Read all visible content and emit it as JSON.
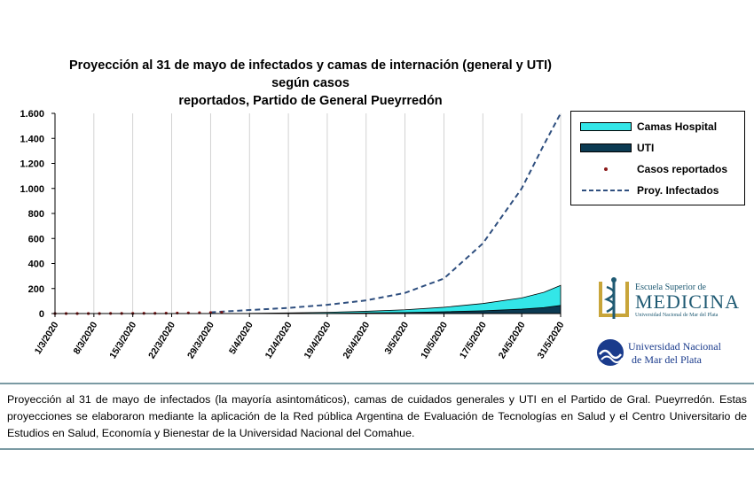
{
  "chart_data": {
    "type": "area",
    "title_line1": "Proyección al 31 de mayo de infectados y camas de internación (general y UTI) según casos",
    "title_line2": "reportados, Partido de General Pueyrredón",
    "xlabel": "",
    "ylabel": "",
    "ylim": [
      0,
      1600
    ],
    "y_ticks": [
      0,
      200,
      400,
      600,
      800,
      1000,
      1200,
      1400,
      1600
    ],
    "y_tick_labels": [
      "0",
      "200",
      "400",
      "600",
      "800",
      "1.000",
      "1.200",
      "1.400",
      "1.600"
    ],
    "x_tick_labels": [
      "1/3/2020",
      "8/3/2020",
      "15/3/2020",
      "22/3/2020",
      "29/3/2020",
      "5/4/2020",
      "12/4/2020",
      "19/4/2020",
      "26/4/2020",
      "3/5/2020",
      "10/5/2020",
      "17/5/2020",
      "24/5/2020",
      "31/5/2020"
    ],
    "x_tick_days": [
      0,
      7,
      14,
      21,
      28,
      35,
      42,
      49,
      56,
      63,
      70,
      77,
      84,
      91
    ],
    "grid": true,
    "legend_position": "right",
    "series": [
      {
        "name": "Camas Hospital",
        "kind": "area",
        "color": "#33e6e8",
        "x": [
          35,
          42,
          49,
          56,
          63,
          70,
          77,
          84,
          88,
          91
        ],
        "values": [
          2,
          5,
          10,
          18,
          30,
          50,
          80,
          125,
          170,
          225
        ]
      },
      {
        "name": "UTI",
        "kind": "area",
        "color": "#0b3a52",
        "x": [
          35,
          42,
          49,
          56,
          63,
          70,
          77,
          84,
          88,
          91
        ],
        "values": [
          0,
          1,
          2,
          5,
          8,
          14,
          22,
          35,
          48,
          65
        ]
      },
      {
        "name": "Casos reportados",
        "kind": "scatter",
        "color": "#8b1a1a",
        "x": [
          0,
          2,
          4,
          6,
          8,
          10,
          12,
          14,
          16,
          18,
          20,
          22,
          24,
          26,
          28,
          30
        ],
        "values": [
          0,
          0,
          0,
          0,
          0,
          1,
          1,
          1,
          2,
          2,
          3,
          4,
          5,
          6,
          7,
          9
        ]
      },
      {
        "name": "Proy. Infectados",
        "kind": "line",
        "color": "#2f4f7f",
        "x": [
          28,
          35,
          42,
          49,
          56,
          63,
          70,
          77,
          84,
          88,
          91
        ],
        "values": [
          10,
          28,
          45,
          70,
          105,
          165,
          280,
          560,
          1000,
          1350,
          1600
        ]
      }
    ]
  },
  "caption": {
    "text": "Proyección al 31 de mayo de infectados (la mayoría asintomáticos), camas de cuidados generales y UTI en el Partido de Gral. Pueyrredón. Estas proyecciones se elaboraron mediante la aplicación de la Red pública Argentina de Evaluación de Tecnologías en Salud y el Centro Universitario de Estudios en Salud, Economía y Bienestar de la Universidad Nacional del Comahue."
  },
  "logos": {
    "medicina_line1": "Escuela Superior de",
    "medicina_line2": "MEDICINA",
    "medicina_line3": "Universidad Nacional de Mar del Plata",
    "unmdp_line1": "Universidad Nacional",
    "unmdp_line2": "de Mar del Plata"
  }
}
